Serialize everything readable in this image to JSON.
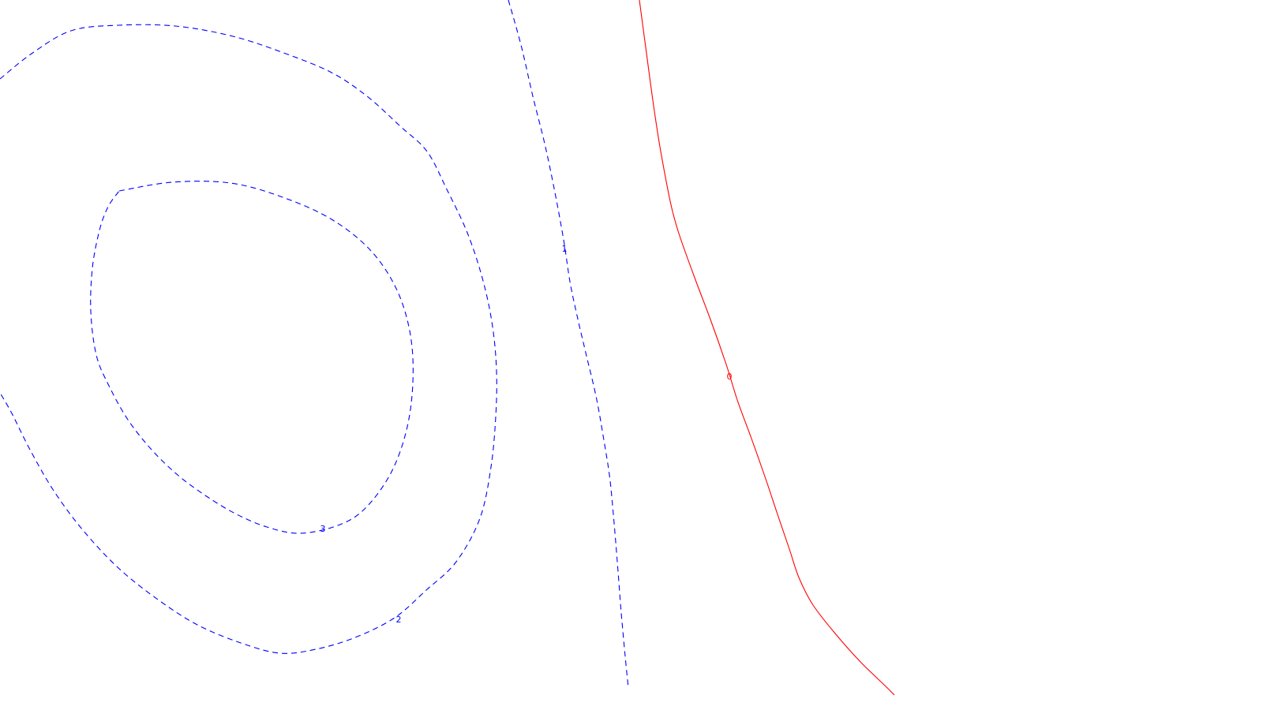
{
  "chart_data": {
    "type": "contour",
    "title": "",
    "xlabel": "",
    "ylabel": "",
    "grid": false,
    "legend": "none",
    "colors": {
      "negative": "#0000ff",
      "zero": "#ff0000"
    },
    "levels": [
      {
        "name": "contour-level-minus-3",
        "label": "-3",
        "value": -3,
        "style": "dashed",
        "color": "#0000ff",
        "points": [
          [
            151,
            242
          ],
          [
            218,
            231
          ],
          [
            292,
            232
          ],
          [
            358,
            250
          ],
          [
            420,
            278
          ],
          [
            470,
            318
          ],
          [
            503,
            368
          ],
          [
            520,
            425
          ],
          [
            523,
            485
          ],
          [
            515,
            545
          ],
          [
            495,
            600
          ],
          [
            462,
            645
          ],
          [
            428,
            666
          ],
          [
            380,
            676
          ],
          [
            338,
            668
          ],
          [
            298,
            651
          ],
          [
            260,
            628
          ],
          [
            225,
            602
          ],
          [
            192,
            570
          ],
          [
            162,
            532
          ],
          [
            138,
            489
          ],
          [
            122,
            450
          ],
          [
            115,
            395
          ],
          [
            117,
            340
          ],
          [
            126,
            292
          ],
          [
            137,
            262
          ],
          [
            151,
            242
          ]
        ]
      },
      {
        "name": "contour-level-minus-2",
        "label": "-2",
        "value": -2,
        "style": "dashed",
        "color": "#0000ff",
        "points": [
          [
            0,
            100
          ],
          [
            40,
            68
          ],
          [
            90,
            39
          ],
          [
            150,
            32
          ],
          [
            222,
            33
          ],
          [
            295,
            46
          ],
          [
            362,
            68
          ],
          [
            420,
            92
          ],
          [
            465,
            122
          ],
          [
            507,
            160
          ],
          [
            541,
            192
          ],
          [
            566,
            240
          ],
          [
            592,
            295
          ],
          [
            612,
            356
          ],
          [
            624,
            414
          ],
          [
            629,
            470
          ],
          [
            628,
            528
          ],
          [
            622,
            592
          ],
          [
            608,
            657
          ],
          [
            578,
            712
          ],
          [
            540,
            748
          ],
          [
            500,
            783
          ],
          [
            450,
            808
          ],
          [
            400,
            823
          ],
          [
            355,
            828
          ],
          [
            305,
            815
          ],
          [
            250,
            792
          ],
          [
            200,
            760
          ],
          [
            150,
            720
          ],
          [
            105,
            672
          ],
          [
            68,
            622
          ],
          [
            38,
            570
          ],
          [
            15,
            524
          ],
          [
            0,
            498
          ]
        ]
      },
      {
        "name": "contour-level-minus-1",
        "label": "-1",
        "value": -1,
        "style": "dashed",
        "color": "#0000ff",
        "points": [
          [
            644,
            0
          ],
          [
            660,
            57
          ],
          [
            675,
            122
          ],
          [
            690,
            182
          ],
          [
            703,
            244
          ],
          [
            714,
            304
          ],
          [
            722,
            357
          ],
          [
            731,
            400
          ],
          [
            742,
            447
          ],
          [
            755,
            502
          ],
          [
            764,
            552
          ],
          [
            772,
            602
          ],
          [
            777,
            652
          ],
          [
            782,
            712
          ],
          [
            787,
            777
          ],
          [
            792,
            832
          ],
          [
            796,
            872
          ]
        ]
      },
      {
        "name": "contour-level-zero",
        "label": "0",
        "value": 0,
        "style": "solid",
        "color": "#ff0000",
        "points": [
          [
            810,
            0
          ],
          [
            818,
            60
          ],
          [
            826,
            120
          ],
          [
            835,
            180
          ],
          [
            844,
            230
          ],
          [
            852,
            268
          ],
          [
            862,
            302
          ],
          [
            880,
            352
          ],
          [
            900,
            405
          ],
          [
            920,
            462
          ],
          [
            934,
            507
          ],
          [
            952,
            556
          ],
          [
            970,
            607
          ],
          [
            985,
            652
          ],
          [
            1000,
            696
          ],
          [
            1012,
            732
          ],
          [
            1030,
            767
          ],
          [
            1058,
            803
          ],
          [
            1090,
            839
          ],
          [
            1120,
            868
          ],
          [
            1133,
            881
          ]
        ]
      }
    ],
    "labels": [
      {
        "name": "contour-label-minus-1",
        "text": "1",
        "level": -1,
        "at": [
          715,
          316
        ],
        "color": "#0000ff"
      },
      {
        "name": "contour-label-zero",
        "text": "0",
        "level": 0,
        "at": [
          924,
          478
        ],
        "color": "#ff0000"
      },
      {
        "name": "contour-label-minus-3",
        "text": "3",
        "level": -3,
        "at": [
          409,
          671
        ],
        "color": "#0000ff"
      },
      {
        "name": "contour-label-minus-2",
        "text": "2",
        "level": -2,
        "at": [
          505,
          786
        ],
        "color": "#0000ff"
      }
    ]
  }
}
